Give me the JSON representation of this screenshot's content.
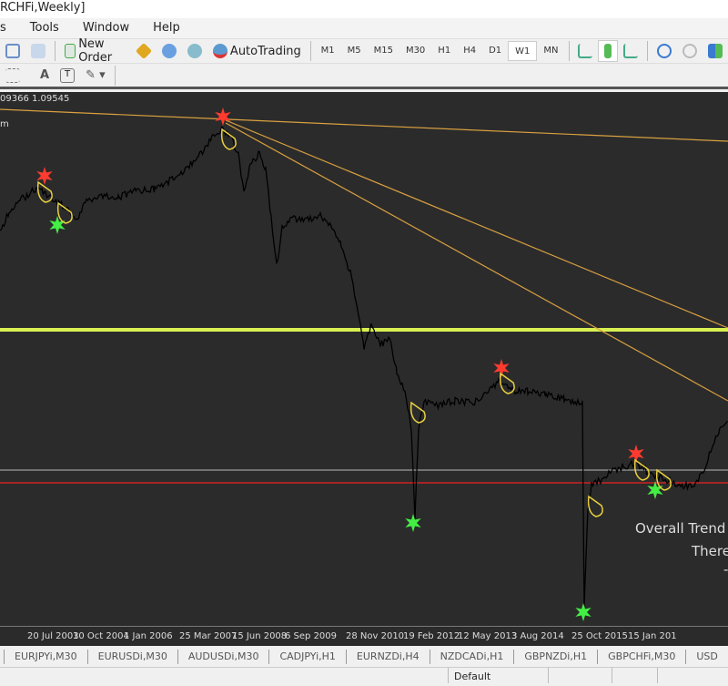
{
  "window": {
    "title": "RCHFi,Weekly]"
  },
  "menu": [
    "s",
    "Tools",
    "Window",
    "Help"
  ],
  "toolbar": {
    "new_order": "New Order",
    "auto_trading": "AutoTrading",
    "timeframes": [
      "M1",
      "M5",
      "M15",
      "M30",
      "H1",
      "H4",
      "D1",
      "W1",
      "MN"
    ],
    "active_timeframe": "W1"
  },
  "chart": {
    "info": "09366 1.09545",
    "corner_label": "m",
    "overlay": [
      "Overall Trend i",
      "There",
      "-"
    ],
    "colors": {
      "background": "#2b2b2b",
      "price": "#000000",
      "support_line": "#d8f050",
      "trend_lines": "#d9a040",
      "red_line": "#cc2222",
      "gray_line": "#8a8a8a",
      "sell_star": "#ff3b2f",
      "buy_star": "#44ee44"
    }
  },
  "x_axis": [
    "20 Jul 2003",
    "10 Oct 2004",
    "1 Jan 2006",
    "25 Mar 2007",
    "15 Jun 2008",
    "6 Sep 2009",
    "28 Nov 2010",
    "19 Feb 2012",
    "12 May 2013",
    "3 Aug 2014",
    "25 Oct 2015",
    "15 Jan 201"
  ],
  "tabs": [
    "EURJPYi,M30",
    "EURUSDi,M30",
    "AUDUSDi,M30",
    "CADJPYi,H1",
    "EURNZDi,H4",
    "NZDCADi,H1",
    "GBPNZDi,H1",
    "GBPCHFi,M30",
    "USD"
  ],
  "status": {
    "profile": "Default"
  }
}
